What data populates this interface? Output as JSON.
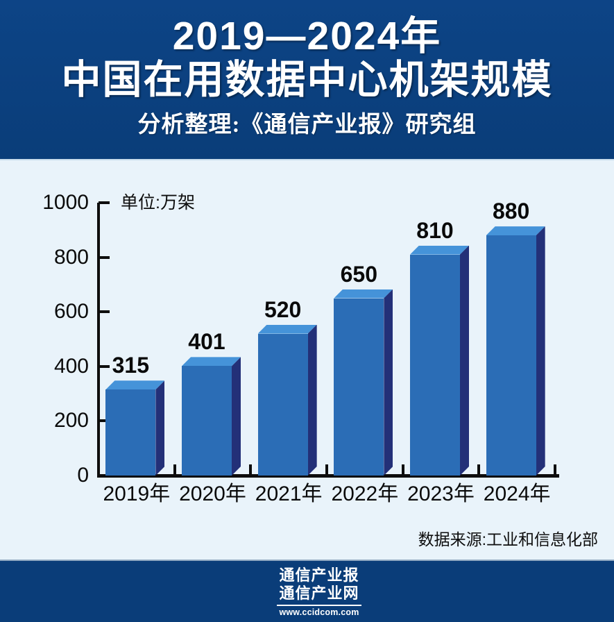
{
  "header": {
    "title_line1": "2019—2024年",
    "title_line2": "中国在用数据中心机架规模",
    "subtitle": "分析整理:《通信产业报》研究组"
  },
  "chart_data": {
    "type": "bar",
    "title": "2019—2024年中国在用数据中心机架规模",
    "unit_label": "单位:万架",
    "categories": [
      "2019年",
      "2020年",
      "2021年",
      "2022年",
      "2023年",
      "2024年"
    ],
    "values": [
      315,
      401,
      520,
      650,
      810,
      880
    ],
    "xlabel": "",
    "ylabel": "",
    "ylim": [
      0,
      1000
    ],
    "yticks": [
      0,
      200,
      400,
      600,
      800,
      1000
    ],
    "grid": false,
    "legend": "none",
    "bar_style": "3d",
    "colors": {
      "bar_front": "#2b6db6",
      "bar_top": "#4593d9",
      "bar_side": "#233078",
      "axis": "#0d0d0d",
      "plot_background": "#e9f3fa",
      "banner_navy": "#0a3d79"
    }
  },
  "source_note": "数据来源:工业和信息化部",
  "footer": {
    "logo_line1": "通信产业报",
    "logo_line2": "通信产业网",
    "logo_url": "www.ccidcom.com"
  }
}
